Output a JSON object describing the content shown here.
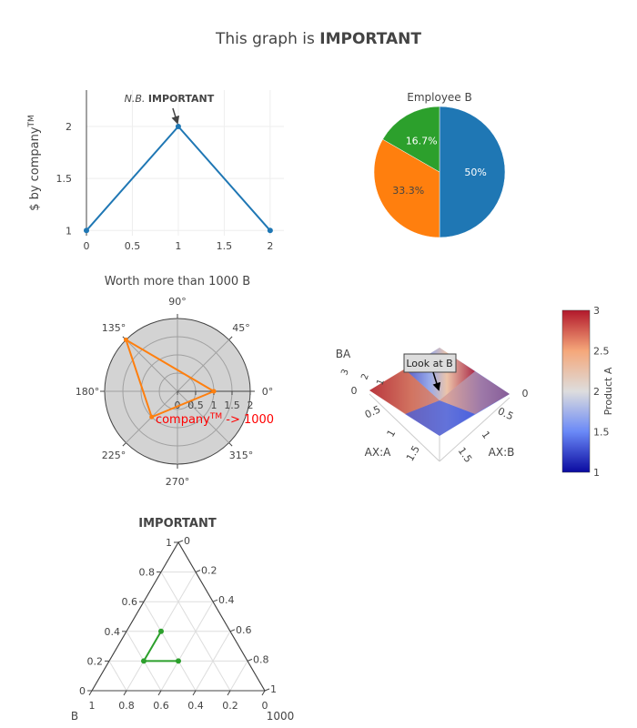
{
  "title": {
    "prefix": "This graph is ",
    "bold": "IMPORTANT"
  },
  "chart_data": [
    {
      "type": "line",
      "x": [
        0,
        1,
        2
      ],
      "y": [
        1,
        2,
        1
      ],
      "ylabel_main": "$ by company",
      "ylabel_sup": "TM",
      "xticks": [
        "0",
        "0.5",
        "1",
        "1.5",
        "2"
      ],
      "yticks": [
        "1",
        "1.5",
        "2"
      ],
      "xlim": [
        0,
        2.15
      ],
      "ylim": [
        0.95,
        2.35
      ],
      "color": "#1f77b4",
      "annotation": {
        "italic": "N.B.",
        "bold": "IMPORTANT",
        "x": 1,
        "y": 2
      }
    },
    {
      "type": "pie",
      "title": "Employee B",
      "values": [
        50,
        33.3,
        16.7
      ],
      "labels": [
        "50%",
        "33.3%",
        "16.7%"
      ],
      "colors": [
        "#1f77b4",
        "#ff7f0e",
        "#2ca02c"
      ]
    },
    {
      "type": "scatter",
      "subtype": "polar",
      "title": "Worth more than 1000 B",
      "r": [
        1,
        2,
        1,
        1
      ],
      "theta": [
        0,
        135,
        225,
        0
      ],
      "color": "#ff7f0e",
      "angular_ticks": [
        "0°",
        "45°",
        "90°",
        "135°",
        "180°",
        "225°",
        "270°",
        "315°"
      ],
      "radial_ticks": [
        "0",
        "0.5",
        "1",
        "1.5",
        "2"
      ],
      "radial_range": [
        0,
        2
      ],
      "annotation": {
        "main": "company",
        "sup": "TM",
        "rest": " -> 1000",
        "color": "#ff0000"
      }
    },
    {
      "type": "surface",
      "x_title": "AX:A",
      "y_title": "AX:B",
      "z_title": "BA",
      "x_ticks": [
        "0",
        "0.5",
        "1",
        "1.5"
      ],
      "y_ticks": [
        "0",
        "0.5",
        "1",
        "1.5"
      ],
      "z_ticks": [
        "1",
        "2",
        "3"
      ],
      "annotation": "Look at B",
      "colorbar": {
        "title": "Product A",
        "ticks": [
          "1",
          "1.5",
          "2",
          "2.5",
          "3"
        ],
        "range": [
          1,
          3
        ]
      },
      "colorscale": [
        "#0a0aa0",
        "#6a89f7",
        "#dddddd",
        "#f5a77a",
        "#b2182b"
      ]
    },
    {
      "type": "scatter",
      "subtype": "ternary",
      "title": "IMPORTANT",
      "a": [
        0.4,
        0.2,
        0.2
      ],
      "b": [
        0.4,
        0.6,
        0.4
      ],
      "c": [
        0.2,
        0.2,
        0.4
      ],
      "color": "#2ca02c",
      "axis_b_title": "B",
      "axis_c_title": "1000",
      "a_ticks": [
        "0",
        "0.2",
        "0.4",
        "0.6",
        "0.8",
        "1"
      ],
      "b_ticks": [
        "0",
        "0.2",
        "0.4",
        "0.6",
        "0.8",
        "1"
      ],
      "c_ticks": [
        "0",
        "0.2",
        "0.4",
        "0.6",
        "0.8",
        "1"
      ]
    }
  ]
}
